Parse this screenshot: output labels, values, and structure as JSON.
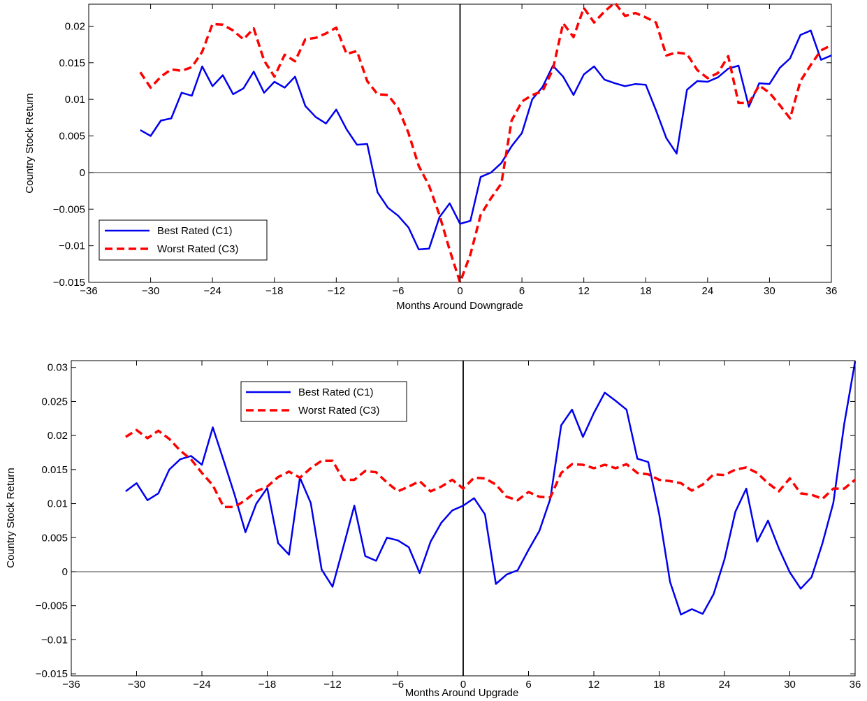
{
  "chart_data": [
    {
      "type": "line",
      "title": "",
      "xlabel": "Months Around Downgrade",
      "ylabel": "Country Stock Return",
      "xlim": [
        -36,
        36
      ],
      "ylim": [
        -0.015,
        0.023
      ],
      "xticks": [
        -36,
        -30,
        -24,
        -18,
        -12,
        -6,
        0,
        6,
        12,
        18,
        24,
        30,
        36
      ],
      "xtick_labels": [
        "−36",
        "−30",
        "−24",
        "−18",
        "−12",
        "−6",
        "0",
        "6",
        "12",
        "18",
        "24",
        "30",
        "36"
      ],
      "yticks": [
        -0.015,
        -0.01,
        -0.005,
        0,
        0.005,
        0.01,
        0.015,
        0.02
      ],
      "ytick_labels": [
        "−0.015",
        "−0.01",
        "−0.005",
        "0",
        "0.005",
        "0.01",
        "0.015",
        "0.02"
      ],
      "legend_position": "lower-left",
      "x": [
        -31,
        -30,
        -29,
        -28,
        -27,
        -26,
        -25,
        -24,
        -23,
        -22,
        -21,
        -20,
        -19,
        -18,
        -17,
        -16,
        -15,
        -14,
        -13,
        -12,
        -11,
        -10,
        -9,
        -8,
        -7,
        -6,
        -5,
        -4,
        -3,
        -2,
        -1,
        0,
        1,
        2,
        3,
        4,
        5,
        6,
        7,
        8,
        9,
        10,
        11,
        12,
        13,
        14,
        15,
        16,
        17,
        18,
        19,
        20,
        21,
        22,
        23,
        24,
        25,
        26,
        27,
        28,
        29,
        30,
        31,
        32,
        33,
        34,
        35,
        36
      ],
      "series": [
        {
          "name": "Best Rated (C1)",
          "color": "#0000ee",
          "dash": "solid",
          "values": [
            0.0058,
            0.005,
            0.0071,
            0.0074,
            0.0109,
            0.0105,
            0.0145,
            0.0118,
            0.0133,
            0.0107,
            0.0115,
            0.0138,
            0.0109,
            0.0124,
            0.0116,
            0.0131,
            0.0091,
            0.0076,
            0.0067,
            0.0086,
            0.0059,
            0.0038,
            0.0039,
            -0.0027,
            -0.0048,
            -0.0059,
            -0.0075,
            -0.0105,
            -0.0104,
            -0.0061,
            -0.0042,
            -0.007,
            -0.0066,
            -0.0006,
            0.0,
            0.0013,
            0.0036,
            0.0054,
            0.01,
            0.0117,
            0.0146,
            0.0131,
            0.0106,
            0.0134,
            0.0145,
            0.0127,
            0.0122,
            0.0118,
            0.0121,
            0.012,
            0.0085,
            0.0047,
            0.0026,
            0.0113,
            0.0125,
            0.0124,
            0.013,
            0.0142,
            0.0146,
            0.009,
            0.0122,
            0.0121,
            0.0143,
            0.0156,
            0.0188,
            0.0194,
            0.0154,
            0.016
          ]
        },
        {
          "name": "Worst Rated (C3)",
          "color": "#ff0000",
          "dash": "dashed",
          "values": [
            0.0137,
            0.0116,
            0.0131,
            0.0141,
            0.0139,
            0.0144,
            0.0165,
            0.0203,
            0.0202,
            0.0194,
            0.0182,
            0.0197,
            0.0153,
            0.0131,
            0.0161,
            0.0152,
            0.0182,
            0.0184,
            0.019,
            0.0198,
            0.0162,
            0.0166,
            0.0125,
            0.0107,
            0.0106,
            0.0088,
            0.0054,
            0.0009,
            -0.0018,
            -0.0058,
            -0.0106,
            -0.015,
            -0.0112,
            -0.0058,
            -0.0035,
            -0.0015,
            0.0071,
            0.0097,
            0.0106,
            0.0111,
            0.0141,
            0.0204,
            0.0185,
            0.0225,
            0.0205,
            0.022,
            0.0232,
            0.0214,
            0.0218,
            0.0212,
            0.0205,
            0.016,
            0.0164,
            0.0162,
            0.014,
            0.0129,
            0.0136,
            0.0159,
            0.0095,
            0.0095,
            0.0119,
            0.0109,
            0.0092,
            0.0074,
            0.0125,
            0.0147,
            0.0167,
            0.0174
          ]
        }
      ]
    },
    {
      "type": "line",
      "title": "",
      "xlabel": "Months Around Upgrade",
      "ylabel": "Country Stock Return",
      "xlim": [
        -36,
        36
      ],
      "ylim": [
        -0.0153,
        0.031
      ],
      "xticks": [
        -36,
        -30,
        -24,
        -18,
        -12,
        -6,
        0,
        6,
        12,
        18,
        24,
        30,
        36
      ],
      "xtick_labels": [
        "−36",
        "−30",
        "−24",
        "−18",
        "−12",
        "−6",
        "0",
        "6",
        "12",
        "18",
        "24",
        "30",
        "36"
      ],
      "yticks": [
        -0.015,
        -0.01,
        -0.005,
        0,
        0.005,
        0.01,
        0.015,
        0.02,
        0.025,
        0.03
      ],
      "ytick_labels": [
        "−0.015",
        "−0.01",
        "−0.005",
        "0",
        "0.005",
        "0.01",
        "0.015",
        "0.02",
        "0.025",
        "0.03"
      ],
      "legend_position": "top-center-left",
      "x": [
        -31,
        -30,
        -29,
        -28,
        -27,
        -26,
        -25,
        -24,
        -23,
        -22,
        -21,
        -20,
        -19,
        -18,
        -17,
        -16,
        -15,
        -14,
        -13,
        -12,
        -11,
        -10,
        -9,
        -8,
        -7,
        -6,
        -5,
        -4,
        -3,
        -2,
        -1,
        0,
        1,
        2,
        3,
        4,
        5,
        6,
        7,
        8,
        9,
        10,
        11,
        12,
        13,
        14,
        15,
        16,
        17,
        18,
        19,
        20,
        21,
        22,
        23,
        24,
        25,
        26,
        27,
        28,
        29,
        30,
        31,
        32,
        33,
        34,
        35,
        36
      ],
      "series": [
        {
          "name": "Best Rated (C1)",
          "color": "#0000ee",
          "dash": "solid",
          "values": [
            0.0118,
            0.013,
            0.0105,
            0.0115,
            0.015,
            0.0165,
            0.017,
            0.0157,
            0.0212,
            0.0163,
            0.0113,
            0.0058,
            0.01,
            0.0123,
            0.0042,
            0.0025,
            0.0138,
            0.0101,
            0.0003,
            -0.0022,
            0.0037,
            0.0097,
            0.0023,
            0.0016,
            0.005,
            0.0046,
            0.0036,
            -0.0002,
            0.0044,
            0.0072,
            0.009,
            0.0097,
            0.0108,
            0.0084,
            -0.0018,
            -0.0004,
            0.0002,
            0.0032,
            0.006,
            0.0107,
            0.0215,
            0.0238,
            0.0198,
            0.0233,
            0.0263,
            0.0251,
            0.0238,
            0.0166,
            0.0161,
            0.0085,
            -0.0015,
            -0.0063,
            -0.0055,
            -0.0062,
            -0.0033,
            0.0018,
            0.0088,
            0.0122,
            0.0044,
            0.0075,
            0.0034,
            -0.0001,
            -0.0025,
            -0.0008,
            0.0042,
            0.0101,
            0.0217,
            0.0309
          ]
        },
        {
          "name": "Worst Rated (C3)",
          "color": "#ff0000",
          "dash": "dashed",
          "values": [
            0.0198,
            0.0208,
            0.0196,
            0.0207,
            0.0195,
            0.0178,
            0.0165,
            0.0145,
            0.0127,
            0.0095,
            0.0095,
            0.0105,
            0.0118,
            0.0125,
            0.0139,
            0.0147,
            0.0138,
            0.0152,
            0.0163,
            0.0163,
            0.0135,
            0.0135,
            0.0148,
            0.0146,
            0.0131,
            0.0118,
            0.0125,
            0.0133,
            0.0118,
            0.0125,
            0.0135,
            0.0122,
            0.0138,
            0.0137,
            0.0128,
            0.011,
            0.0105,
            0.0117,
            0.011,
            0.0109,
            0.0145,
            0.0158,
            0.0157,
            0.0152,
            0.0157,
            0.0152,
            0.0158,
            0.0145,
            0.0143,
            0.0135,
            0.0133,
            0.013,
            0.0119,
            0.0128,
            0.0143,
            0.0142,
            0.015,
            0.0153,
            0.0145,
            0.013,
            0.0118,
            0.0137,
            0.0115,
            0.0113,
            0.0107,
            0.0122,
            0.0122,
            0.0135
          ]
        }
      ]
    }
  ]
}
